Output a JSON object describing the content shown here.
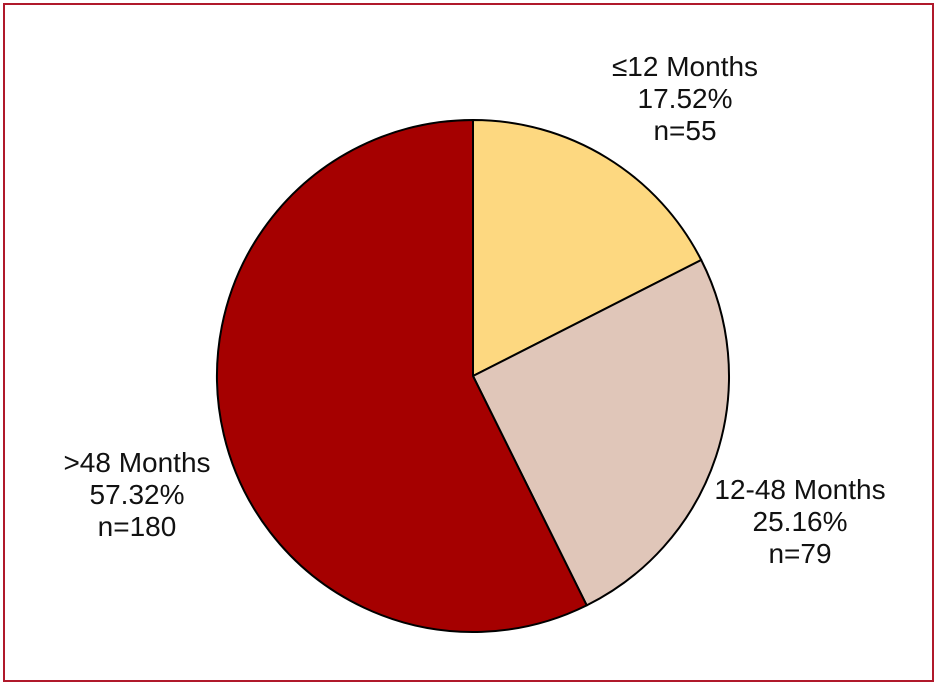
{
  "chart_data": {
    "type": "pie",
    "title": "",
    "slices": [
      {
        "label": "≤12 Months",
        "percent_label": "17.52%",
        "n_label": "n=55",
        "value": 55,
        "percent": 17.52,
        "color": "#fdd880"
      },
      {
        "label": "12-48 Months",
        "percent_label": "25.16%",
        "n_label": "n=79",
        "value": 79,
        "percent": 25.16,
        "color": "#e0c6b9"
      },
      {
        "label": ">48 Months",
        "percent_label": "57.32%",
        "n_label": "n=180",
        "value": 180,
        "percent": 57.32,
        "color": "#a50000"
      }
    ],
    "start_angle": "12 o'clock",
    "direction": "clockwise",
    "frame_color": "#b0192b"
  }
}
